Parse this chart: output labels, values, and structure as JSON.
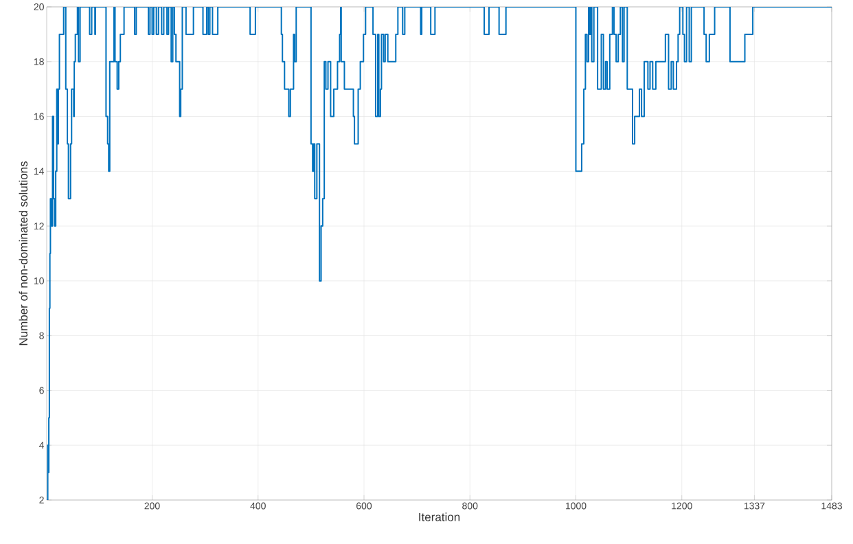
{
  "chart_data": {
    "type": "step",
    "xlabel": "Iteration",
    "ylabel": "Number of non-dominated solutions",
    "xlim": [
      1,
      1483
    ],
    "ylim": [
      2,
      20
    ],
    "xticks": [
      200,
      400,
      600,
      800,
      1000,
      1200,
      1337,
      1483
    ],
    "yticks": [
      2,
      4,
      6,
      8,
      10,
      12,
      14,
      16,
      18,
      20
    ],
    "grid": true,
    "line_style": "solid",
    "marker": "none",
    "series": [
      {
        "color": "#0072bd",
        "x": [
          1,
          3,
          4,
          5,
          6,
          7,
          8,
          10,
          12,
          14,
          16,
          18,
          20,
          22,
          23,
          25,
          33,
          37,
          40,
          42,
          46,
          48,
          52,
          53,
          55,
          59,
          61,
          64,
          82,
          86,
          92,
          93,
          113,
          116,
          118,
          120,
          128,
          130,
          134,
          137,
          140,
          147,
          167,
          170,
          193,
          196,
          200,
          203,
          208,
          212,
          218,
          222,
          228,
          231,
          236,
          239,
          242,
          245,
          252,
          254,
          257,
          264,
          278,
          296,
          303,
          306,
          309,
          314,
          324,
          385,
          395,
          444,
          446,
          450,
          458,
          461,
          467,
          469,
          472,
          500,
          503,
          505,
          507,
          511,
          516,
          519,
          522,
          525,
          528,
          532,
          537,
          543,
          550,
          554,
          556,
          557,
          563,
          580,
          582,
          589,
          593,
          599,
          603,
          617,
          622,
          626,
          628,
          631,
          633,
          637,
          640,
          645,
          660,
          664,
          673,
          677,
          707,
          709,
          726,
          734,
          827,
          836,
          855,
          868,
          1000,
          1011,
          1015,
          1018,
          1021,
          1024,
          1026,
          1028,
          1030,
          1034,
          1041,
          1048,
          1052,
          1056,
          1059,
          1064,
          1069,
          1072,
          1076,
          1080,
          1084,
          1088,
          1091,
          1097,
          1107,
          1111,
          1120,
          1124,
          1129,
          1136,
          1140,
          1145,
          1151,
          1169,
          1175,
          1180,
          1184,
          1190,
          1193,
          1196,
          1202,
          1205,
          1209,
          1214,
          1218,
          1242,
          1246,
          1252,
          1262,
          1291,
          1319,
          1334,
          1483
        ],
        "values": [
          2,
          4,
          3,
          5,
          9,
          11,
          13,
          12,
          16,
          13,
          12,
          14,
          17,
          15,
          17,
          19,
          20,
          17,
          15,
          13,
          15,
          17,
          16,
          18,
          19,
          20,
          18,
          20,
          19,
          20,
          19,
          20,
          16,
          15,
          14,
          18,
          20,
          18,
          17,
          18,
          19,
          20,
          19,
          20,
          19,
          20,
          19,
          20,
          19,
          20,
          19,
          20,
          19,
          20,
          18,
          20,
          19,
          18,
          16,
          17,
          20,
          19,
          20,
          19,
          20,
          19,
          20,
          19,
          20,
          19,
          20,
          19,
          18,
          17,
          16,
          17,
          19,
          18,
          20,
          15,
          14,
          15,
          13,
          15,
          10,
          12,
          13,
          18,
          17,
          18,
          16,
          17,
          18,
          19,
          20,
          18,
          17,
          16,
          15,
          17,
          18,
          19,
          20,
          19,
          16,
          19,
          16,
          17,
          19,
          18,
          19,
          18,
          19,
          20,
          19,
          20,
          19,
          20,
          19,
          20,
          19,
          20,
          19,
          20,
          14,
          15,
          17,
          19,
          18,
          20,
          19,
          20,
          18,
          20,
          17,
          19,
          17,
          18,
          17,
          19,
          20,
          19,
          18,
          19,
          20,
          18,
          20,
          17,
          15,
          16,
          17,
          16,
          18,
          17,
          18,
          17,
          18,
          19,
          17,
          18,
          17,
          18,
          19,
          20,
          19,
          18,
          20,
          18,
          20,
          19,
          18,
          19,
          20,
          18,
          19,
          20,
          20
        ]
      }
    ]
  }
}
